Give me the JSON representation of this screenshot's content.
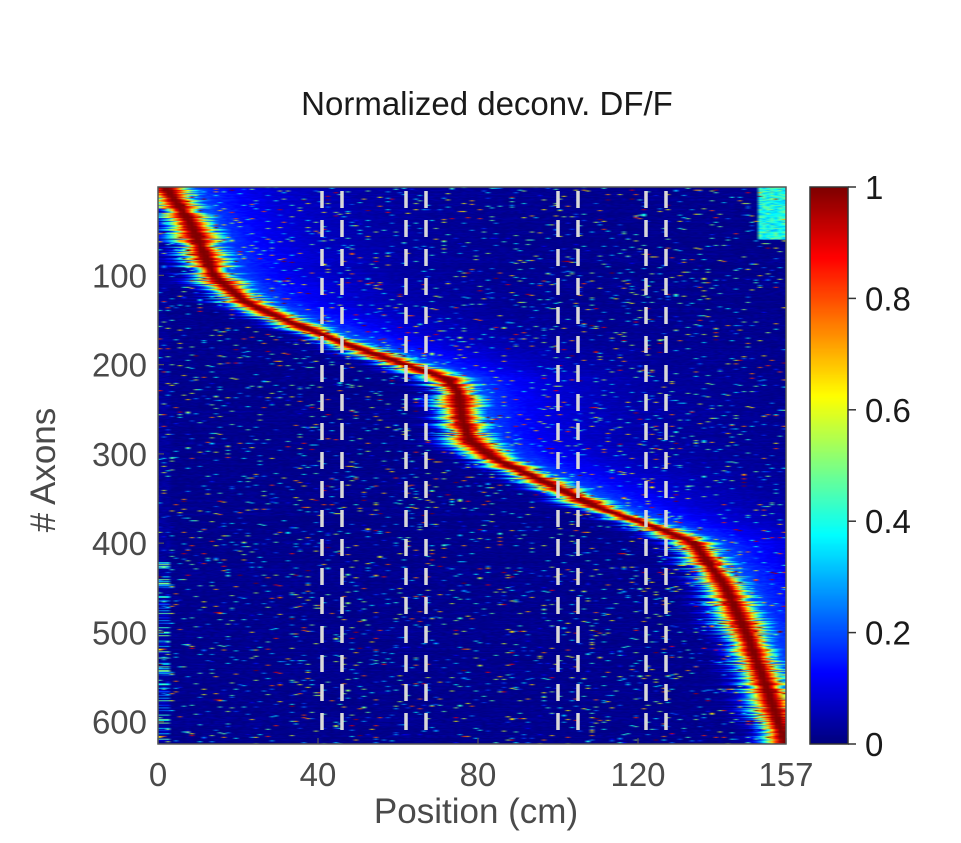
{
  "chart_data": {
    "type": "heatmap",
    "title": "Normalized deconv. DF/F",
    "xlabel": "Position (cm)",
    "ylabel": "# Axons",
    "x_range": [
      0,
      157
    ],
    "y_range": [
      1,
      625
    ],
    "x_ticks": [
      {
        "value": 0,
        "label": "0"
      },
      {
        "value": 40,
        "label": "40"
      },
      {
        "value": 80,
        "label": "80"
      },
      {
        "value": 120,
        "label": "120"
      },
      {
        "value": 157,
        "label": "157"
      }
    ],
    "y_ticks": [
      {
        "value": 100,
        "label": "100"
      },
      {
        "value": 200,
        "label": "200"
      },
      {
        "value": 300,
        "label": "300"
      },
      {
        "value": 400,
        "label": "400"
      },
      {
        "value": 500,
        "label": "500"
      },
      {
        "value": 600,
        "label": "600"
      }
    ],
    "colorbar": {
      "colormap": "jet",
      "range": [
        0,
        1
      ],
      "ticks": [
        {
          "value": 0,
          "label": "0"
        },
        {
          "value": 0.2,
          "label": "0.2"
        },
        {
          "value": 0.4,
          "label": "0.4"
        },
        {
          "value": 0.6,
          "label": "0.6"
        },
        {
          "value": 0.8,
          "label": "0.8"
        },
        {
          "value": 1,
          "label": "1"
        }
      ]
    },
    "dashed_lines_x": [
      41,
      46,
      62,
      67,
      100,
      105,
      122,
      127
    ],
    "peak_trace": [
      {
        "axon": 1,
        "position": 2
      },
      {
        "axon": 40,
        "position": 8
      },
      {
        "axon": 100,
        "position": 14
      },
      {
        "axon": 130,
        "position": 22
      },
      {
        "axon": 150,
        "position": 32
      },
      {
        "axon": 175,
        "position": 46
      },
      {
        "axon": 200,
        "position": 62
      },
      {
        "axon": 215,
        "position": 72
      },
      {
        "axon": 230,
        "position": 75
      },
      {
        "axon": 260,
        "position": 76
      },
      {
        "axon": 285,
        "position": 78
      },
      {
        "axon": 305,
        "position": 84
      },
      {
        "axon": 330,
        "position": 96
      },
      {
        "axon": 360,
        "position": 110
      },
      {
        "axon": 385,
        "position": 126
      },
      {
        "axon": 400,
        "position": 134
      },
      {
        "axon": 450,
        "position": 142
      },
      {
        "axon": 500,
        "position": 147
      },
      {
        "axon": 560,
        "position": 152
      },
      {
        "axon": 625,
        "position": 157
      }
    ]
  },
  "colors": {
    "background": "#ffffff",
    "dashed_line": "#d8d8d8",
    "axis_frame": "#555555"
  }
}
